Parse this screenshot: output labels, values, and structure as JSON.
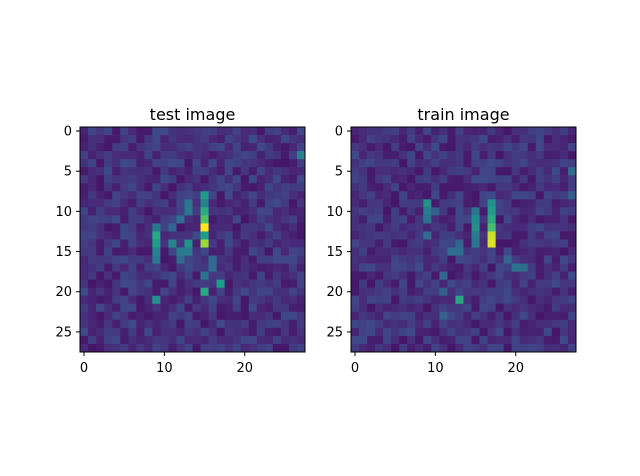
{
  "chart_data": [
    {
      "type": "heatmap",
      "title": "test image",
      "rows": 28,
      "cols": 28,
      "colormap": "viridis",
      "xlim": [
        -0.5,
        27.5
      ],
      "ylim": [
        27.5,
        -0.5
      ],
      "x_ticks": [
        0,
        10,
        20
      ],
      "y_ticks": [
        0,
        5,
        10,
        15,
        20,
        25
      ],
      "seed": 7,
      "noise_mean": 0.14,
      "noise_range": 0.16,
      "hot_cells": [
        {
          "r": 12,
          "c": 15,
          "v": 1.0
        },
        {
          "r": 14,
          "c": 15,
          "v": 0.85
        },
        {
          "r": 11,
          "c": 15,
          "v": 0.72
        },
        {
          "r": 10,
          "c": 15,
          "v": 0.62
        },
        {
          "r": 13,
          "c": 15,
          "v": 0.55
        },
        {
          "r": 8,
          "c": 15,
          "v": 0.55
        },
        {
          "r": 9,
          "c": 15,
          "v": 0.45
        },
        {
          "r": 13,
          "c": 9,
          "v": 0.6
        },
        {
          "r": 14,
          "c": 9,
          "v": 0.55
        },
        {
          "r": 15,
          "c": 9,
          "v": 0.45
        },
        {
          "r": 16,
          "c": 9,
          "v": 0.4
        },
        {
          "r": 12,
          "c": 9,
          "v": 0.4
        },
        {
          "r": 14,
          "c": 11,
          "v": 0.45
        },
        {
          "r": 15,
          "c": 12,
          "v": 0.4
        },
        {
          "r": 14,
          "c": 13,
          "v": 0.5
        },
        {
          "r": 15,
          "c": 13,
          "v": 0.42
        },
        {
          "r": 10,
          "c": 13,
          "v": 0.4
        },
        {
          "r": 9,
          "c": 13,
          "v": 0.38
        },
        {
          "r": 20,
          "c": 15,
          "v": 0.6
        },
        {
          "r": 19,
          "c": 17,
          "v": 0.55
        },
        {
          "r": 21,
          "c": 9,
          "v": 0.5
        },
        {
          "r": 16,
          "c": 16,
          "v": 0.35
        },
        {
          "r": 18,
          "c": 15,
          "v": 0.38
        },
        {
          "r": 17,
          "c": 16,
          "v": 0.35
        },
        {
          "r": 11,
          "c": 12,
          "v": 0.36
        },
        {
          "r": 12,
          "c": 11,
          "v": 0.32
        },
        {
          "r": 16,
          "c": 12,
          "v": 0.35
        },
        {
          "r": 3,
          "c": 27,
          "v": 0.45
        }
      ]
    },
    {
      "type": "heatmap",
      "title": "train image",
      "rows": 28,
      "cols": 28,
      "colormap": "viridis",
      "xlim": [
        -0.5,
        27.5
      ],
      "ylim": [
        27.5,
        -0.5
      ],
      "x_ticks": [
        0,
        10,
        20
      ],
      "y_ticks": [
        0,
        5,
        10,
        15,
        20,
        25
      ],
      "seed": 23,
      "noise_mean": 0.14,
      "noise_range": 0.16,
      "hot_cells": [
        {
          "r": 13,
          "c": 17,
          "v": 0.92
        },
        {
          "r": 14,
          "c": 17,
          "v": 0.95
        },
        {
          "r": 12,
          "c": 17,
          "v": 0.7
        },
        {
          "r": 11,
          "c": 17,
          "v": 0.6
        },
        {
          "r": 10,
          "c": 17,
          "v": 0.55
        },
        {
          "r": 9,
          "c": 17,
          "v": 0.5
        },
        {
          "r": 12,
          "c": 15,
          "v": 0.5
        },
        {
          "r": 11,
          "c": 15,
          "v": 0.48
        },
        {
          "r": 13,
          "c": 15,
          "v": 0.42
        },
        {
          "r": 10,
          "c": 15,
          "v": 0.4
        },
        {
          "r": 14,
          "c": 15,
          "v": 0.38
        },
        {
          "r": 9,
          "c": 9,
          "v": 0.5
        },
        {
          "r": 10,
          "c": 9,
          "v": 0.42
        },
        {
          "r": 11,
          "c": 9,
          "v": 0.38
        },
        {
          "r": 13,
          "c": 9,
          "v": 0.35
        },
        {
          "r": 10,
          "c": 10,
          "v": 0.3
        },
        {
          "r": 15,
          "c": 12,
          "v": 0.35
        },
        {
          "r": 15,
          "c": 13,
          "v": 0.35
        },
        {
          "r": 14,
          "c": 13,
          "v": 0.32
        },
        {
          "r": 21,
          "c": 13,
          "v": 0.6
        },
        {
          "r": 17,
          "c": 20,
          "v": 0.38
        },
        {
          "r": 17,
          "c": 21,
          "v": 0.35
        },
        {
          "r": 16,
          "c": 19,
          "v": 0.32
        },
        {
          "r": 18,
          "c": 11,
          "v": 0.33
        },
        {
          "r": 20,
          "c": 11,
          "v": 0.3
        },
        {
          "r": 23,
          "c": 11,
          "v": 0.3
        },
        {
          "r": 5,
          "c": 27,
          "v": 0.35
        },
        {
          "r": 8,
          "c": 27,
          "v": 0.3
        }
      ]
    }
  ]
}
